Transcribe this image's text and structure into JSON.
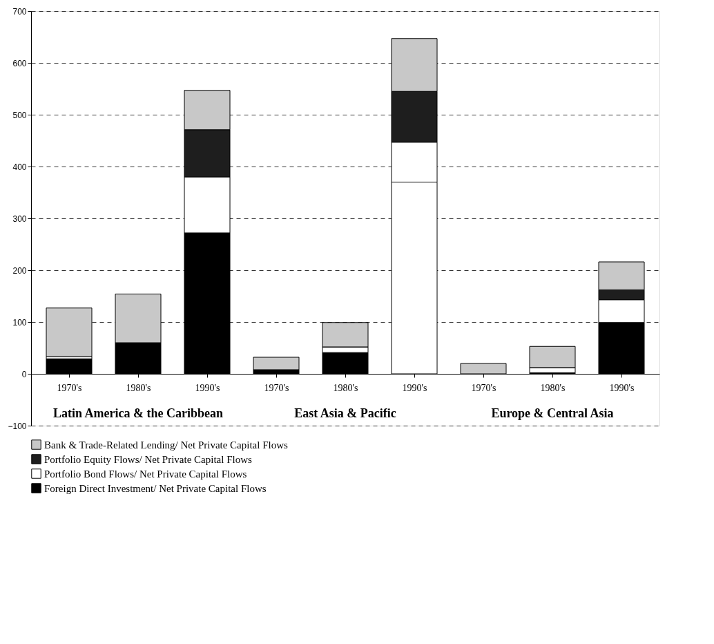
{
  "chart_data": {
    "type": "bar",
    "stacked": true,
    "categories": [
      "1970's",
      "1980's",
      "1990's",
      "1970's",
      "1980's",
      "1990's",
      "1970's",
      "1980's",
      "1990's"
    ],
    "series": [
      {
        "name": "Foreign Direct Investment/ Net Private Capital Flows",
        "color": "#000000",
        "colors": [
          "#000000",
          "#000000",
          "#000000",
          "#000000",
          "#000000",
          "#ffffff",
          "#000000",
          "#000000",
          "#000000"
        ],
        "values": [
          29,
          60,
          272,
          8,
          41,
          370,
          0,
          2,
          99
        ]
      },
      {
        "name": "Portfolio Bond Flows/ Net Private Capital Flows",
        "color": "#ffffff",
        "values": [
          4,
          0,
          108,
          0,
          11,
          77,
          0,
          10,
          44
        ]
      },
      {
        "name": "Portfolio Equity Flows/ Net Private Capital Flows",
        "color": "#1e1e1e",
        "values": [
          0,
          0,
          91,
          0,
          0,
          98,
          0,
          0,
          19
        ]
      },
      {
        "name": "Bank & Trade-Related Lending/ Net Private Capital Flows",
        "color": "#c8c8c8",
        "values": [
          94,
          94,
          76,
          24,
          47,
          102,
          20,
          41,
          54
        ]
      }
    ],
    "ylim": [
      -100,
      700
    ],
    "yticks": [
      -100,
      0,
      100,
      200,
      300,
      400,
      500,
      600,
      700
    ],
    "grid": "y",
    "legend": "bottom",
    "annotations": [
      "Latin America & the Caribbean",
      "East Asia & Pacific",
      "Europe & Central Asia"
    ]
  }
}
